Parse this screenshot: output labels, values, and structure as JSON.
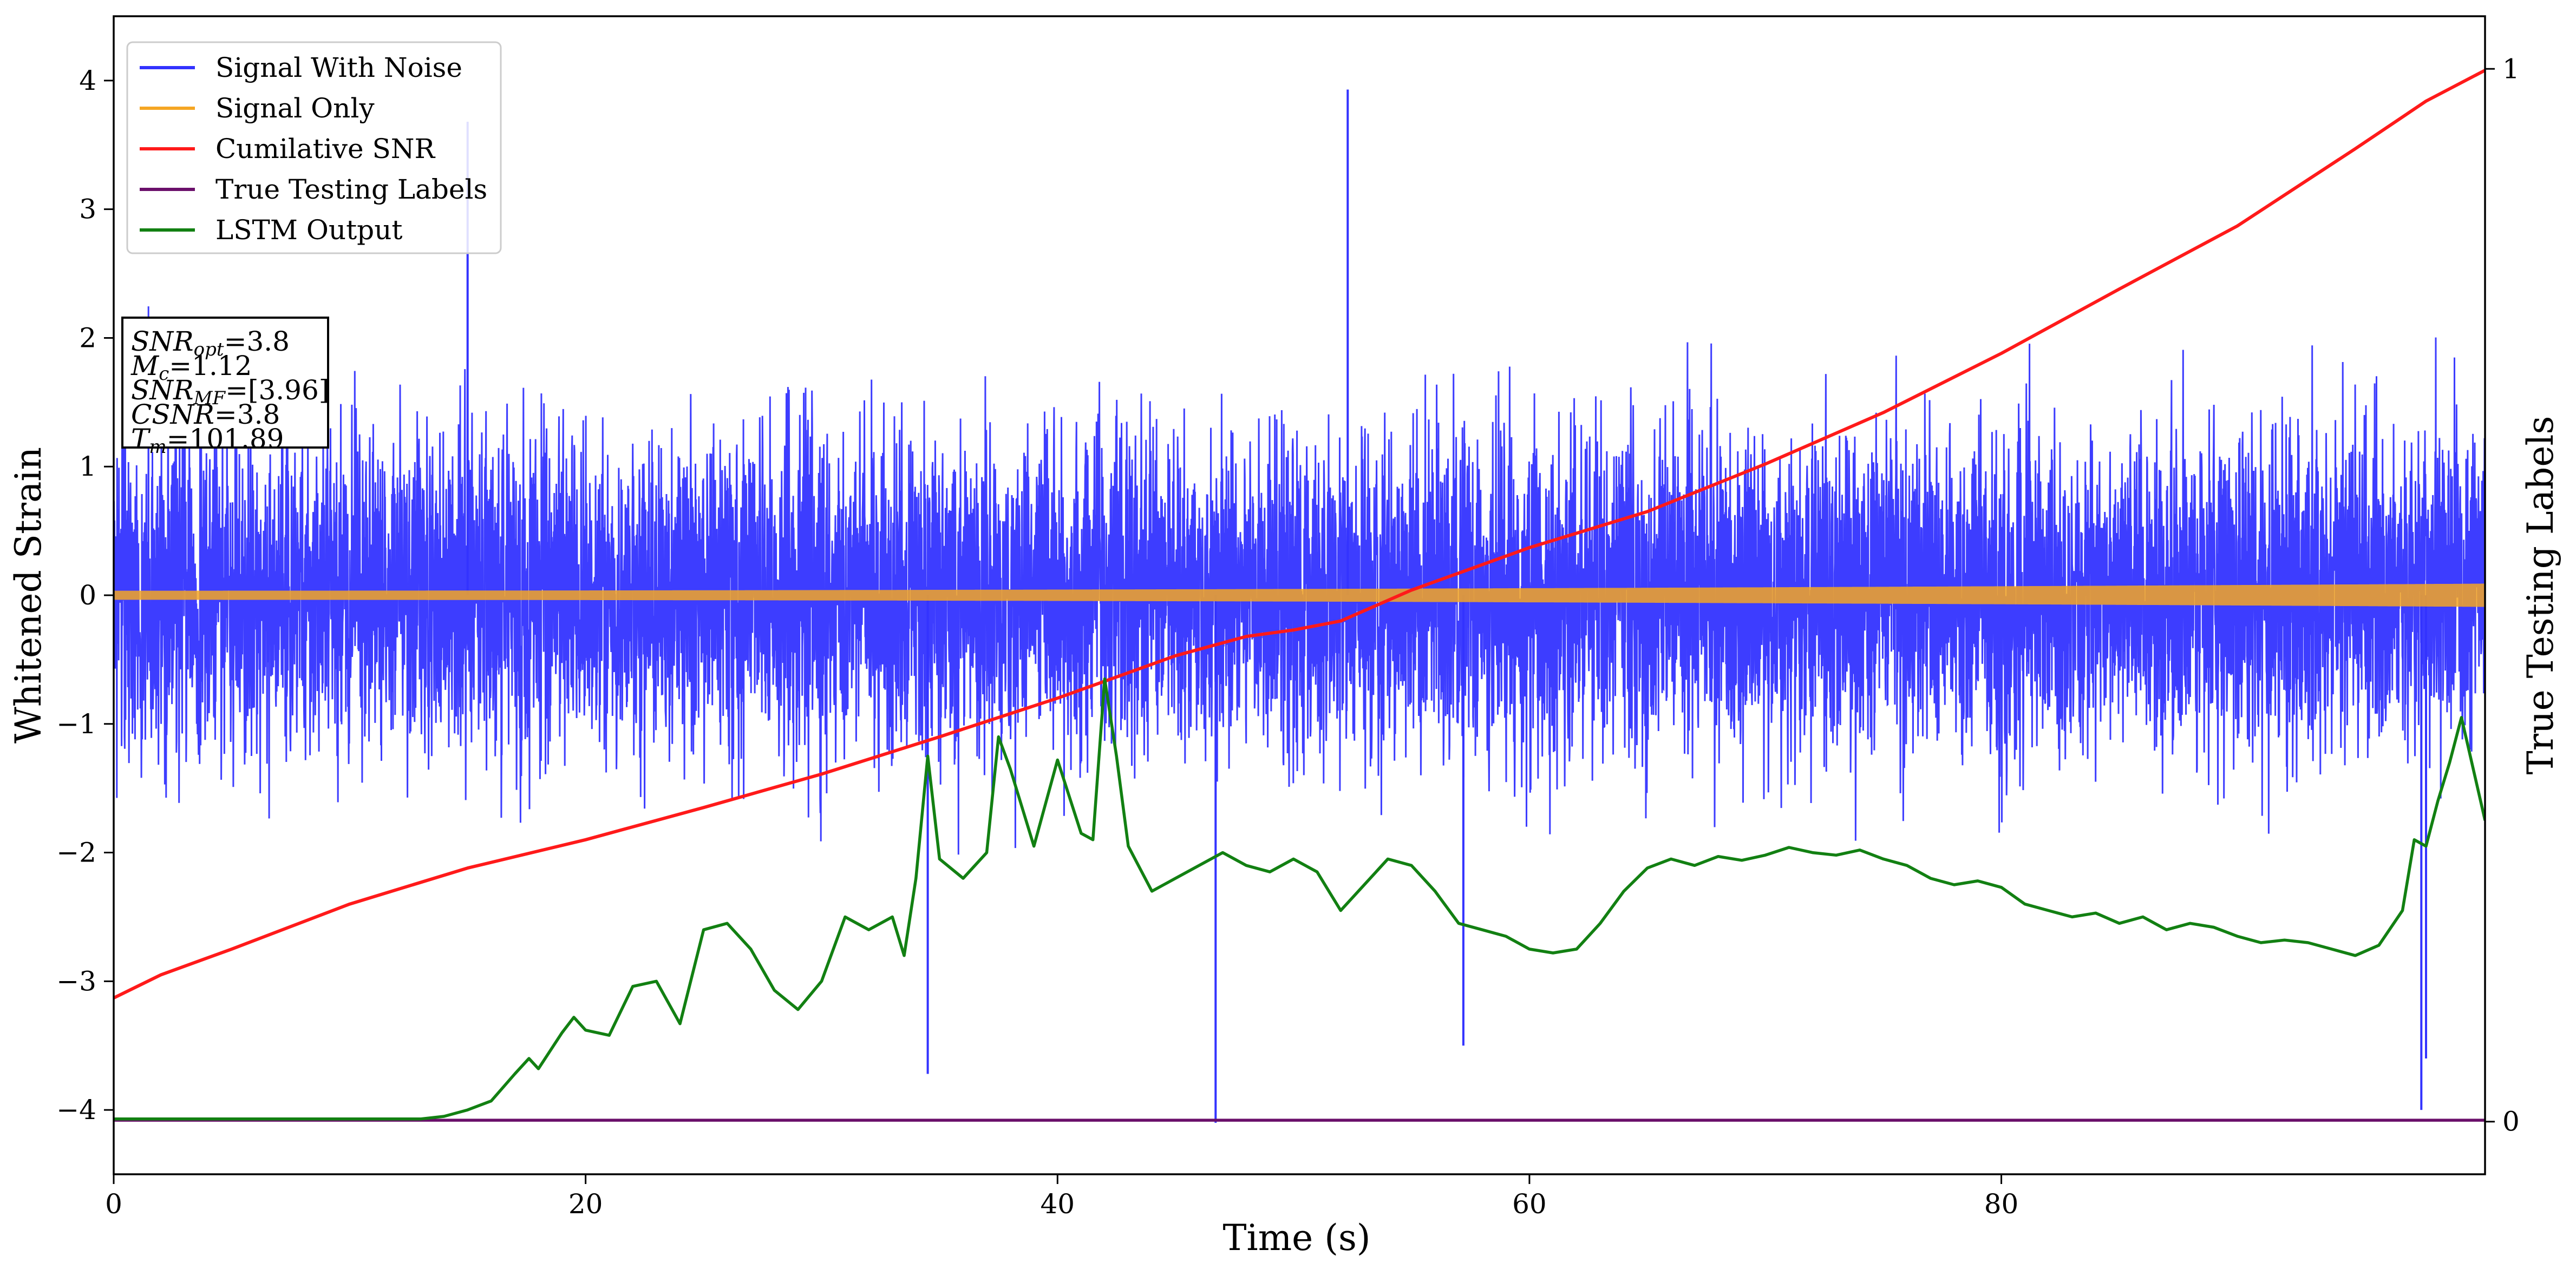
{
  "chart_data": {
    "type": "line",
    "title": "",
    "xlabel": "Time (s)",
    "ylabel": "Whitened Strain",
    "y2label": "True Testing Labels",
    "xlim": [
      0,
      100.5
    ],
    "ylim": [
      -4.5,
      4.5
    ],
    "y2lim": [
      -0.05,
      1.05
    ],
    "x_ticks": [
      0,
      20,
      40,
      60,
      80
    ],
    "x_tick_labels": [
      "0",
      "20",
      "40",
      "60",
      "80"
    ],
    "y_ticks": [
      -4,
      -3,
      -2,
      -1,
      0,
      1,
      2,
      3,
      4
    ],
    "y_tick_labels": [
      "−4",
      "−3",
      "−2",
      "−1",
      "0",
      "1",
      "2",
      "3",
      "4"
    ],
    "y2_ticks": [
      0,
      1
    ],
    "y2_tick_labels": [
      "0",
      "1"
    ],
    "grid": false,
    "legend_position": "top-left",
    "colors": {
      "signal_noise": "#3333ff",
      "signal_only": "#f5a623",
      "cum_snr": "#ff1a1a",
      "true_labels": "#6a0f6a",
      "lstm": "#128012"
    },
    "legend": [
      {
        "label": "Signal With Noise",
        "color": "#3333ff"
      },
      {
        "label": "Signal Only",
        "color": "#f5a623"
      },
      {
        "label": "Cumilative SNR",
        "color": "#ff1a1a"
      },
      {
        "label": "True Testing Labels",
        "color": "#6a0f6a"
      },
      {
        "label": "LSTM Output",
        "color": "#128012"
      }
    ],
    "info_box": [
      {
        "name": "SNR",
        "sub": "opt",
        "value": "=3.8"
      },
      {
        "name": "M",
        "sub": "c",
        "value": "=1.12"
      },
      {
        "name": "SNR",
        "sub": "MF",
        "value": "=[3.96]"
      },
      {
        "name": "CSNR",
        "sub": "",
        "value": "=3.8"
      },
      {
        "name": "T",
        "sub": "m",
        "value": "=101.89"
      }
    ],
    "series": [
      {
        "name": "Signal With Noise",
        "kind": "noise",
        "x_range": [
          0,
          100.5
        ],
        "typical_band": [
          -2.0,
          2.0
        ],
        "peak_max": 3.93,
        "peak_min": -4.1,
        "spikes": [
          [
            15.0,
            3.68
          ],
          [
            34.5,
            -3.72
          ],
          [
            46.7,
            -4.1
          ],
          [
            52.3,
            3.93
          ],
          [
            57.2,
            -3.5
          ],
          [
            97.8,
            -4.0
          ],
          [
            98.0,
            -3.6
          ]
        ]
      },
      {
        "name": "Signal Only",
        "kind": "chirp",
        "x_range": [
          0,
          100.5
        ],
        "amp_start": 0.035,
        "amp_end": 0.09
      },
      {
        "name": "Cumilative SNR",
        "x": [
          0,
          2,
          5,
          10,
          15,
          20,
          25,
          30,
          35,
          40,
          45,
          48,
          50,
          52,
          55,
          60,
          65,
          70,
          75,
          80,
          85,
          90,
          95,
          98,
          100.5
        ],
        "y": [
          -3.13,
          -2.95,
          -2.75,
          -2.4,
          -2.12,
          -1.9,
          -1.65,
          -1.39,
          -1.1,
          -0.8,
          -0.47,
          -0.32,
          -0.27,
          -0.2,
          0.04,
          0.37,
          0.65,
          1.02,
          1.42,
          1.88,
          2.38,
          2.87,
          3.47,
          3.84,
          4.08
        ]
      },
      {
        "name": "True Testing Labels",
        "x": [
          0,
          100.5
        ],
        "y": [
          -4.08,
          -4.08
        ]
      },
      {
        "name": "LSTM Output",
        "x": [
          0,
          5,
          10,
          13,
          14,
          15,
          16,
          17,
          17.6,
          18,
          19,
          19.5,
          20,
          21,
          22,
          23,
          24,
          25,
          26,
          27,
          28,
          29,
          30,
          31,
          32,
          33,
          33.5,
          34,
          34.5,
          35,
          36,
          37,
          37.5,
          38,
          39,
          40,
          41,
          41.5,
          42,
          42.5,
          43,
          44,
          44.5,
          45,
          46,
          47,
          48,
          49,
          50,
          51,
          52,
          53,
          54,
          55,
          56,
          57,
          58,
          59,
          60,
          61,
          62,
          63,
          64,
          65,
          66,
          67,
          68,
          69,
          70,
          71,
          72,
          73,
          74,
          75,
          76,
          77,
          78,
          79,
          80,
          81,
          82,
          83,
          84,
          85,
          86,
          87,
          88,
          89,
          90,
          91,
          92,
          93,
          94,
          95,
          96,
          97,
          97.5,
          98,
          98.5,
          99,
          99.5,
          100.5
        ],
        "y": [
          -4.07,
          -4.07,
          -4.07,
          -4.07,
          -4.05,
          -4.0,
          -3.93,
          -3.72,
          -3.6,
          -3.68,
          -3.4,
          -3.28,
          -3.38,
          -3.42,
          -3.04,
          -3.0,
          -3.33,
          -2.6,
          -2.55,
          -2.75,
          -3.07,
          -3.22,
          -3.0,
          -2.5,
          -2.6,
          -2.5,
          -2.8,
          -2.2,
          -1.25,
          -2.05,
          -2.2,
          -2.0,
          -1.1,
          -1.35,
          -1.95,
          -1.28,
          -1.85,
          -1.9,
          -0.65,
          -1.25,
          -1.95,
          -2.3,
          -2.25,
          -2.2,
          -2.1,
          -2.0,
          -2.1,
          -2.15,
          -2.05,
          -2.15,
          -2.45,
          -2.25,
          -2.05,
          -2.1,
          -2.3,
          -2.55,
          -2.6,
          -2.65,
          -2.75,
          -2.78,
          -2.75,
          -2.55,
          -2.3,
          -2.12,
          -2.05,
          -2.1,
          -2.03,
          -2.06,
          -2.02,
          -1.96,
          -2.0,
          -2.02,
          -1.98,
          -2.05,
          -2.1,
          -2.2,
          -2.25,
          -2.22,
          -2.27,
          -2.4,
          -2.45,
          -2.5,
          -2.47,
          -2.55,
          -2.5,
          -2.6,
          -2.55,
          -2.58,
          -2.65,
          -2.7,
          -2.68,
          -2.7,
          -2.75,
          -2.8,
          -2.72,
          -2.45,
          -1.9,
          -1.95,
          -1.6,
          -1.3,
          -0.95,
          -1.75
        ]
      }
    ]
  }
}
